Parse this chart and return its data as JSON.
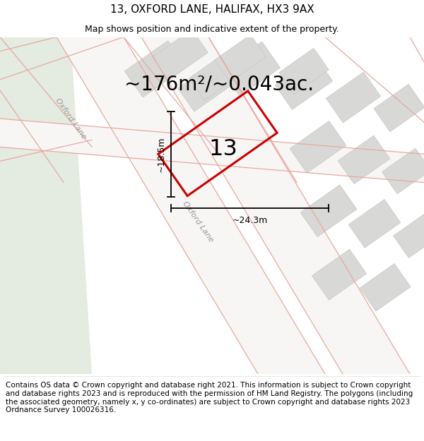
{
  "title": "13, OXFORD LANE, HALIFAX, HX3 9AX",
  "subtitle": "Map shows position and indicative extent of the property.",
  "area_text": "~176m²/~0.043ac.",
  "property_number": "13",
  "dim_height": "~18.5m",
  "dim_width": "~24.3m",
  "street_label_left": "Oxford Lane",
  "street_label_diag": "Oxford Lane",
  "footer": "Contains OS data © Crown copyright and database right 2021. This information is subject to Crown copyright and database rights 2023 and is reproduced with the permission of HM Land Registry. The polygons (including the associated geometry, namely x, y co-ordinates) are subject to Crown copyright and database rights 2023 Ordnance Survey 100026316.",
  "bg_color": "#f5f5f2",
  "map_bg": "#f2f2ee",
  "road_fill": "#ffffff",
  "green_area": "#e8ece4",
  "plot_color": "#cc0000",
  "building_fill": "#d8d8d6",
  "road_edge_color": "#e8a8a0",
  "block_edge_color": "#e8a8a0",
  "title_fontsize": 11,
  "subtitle_fontsize": 9,
  "area_fontsize": 20,
  "footer_fontsize": 7.5
}
